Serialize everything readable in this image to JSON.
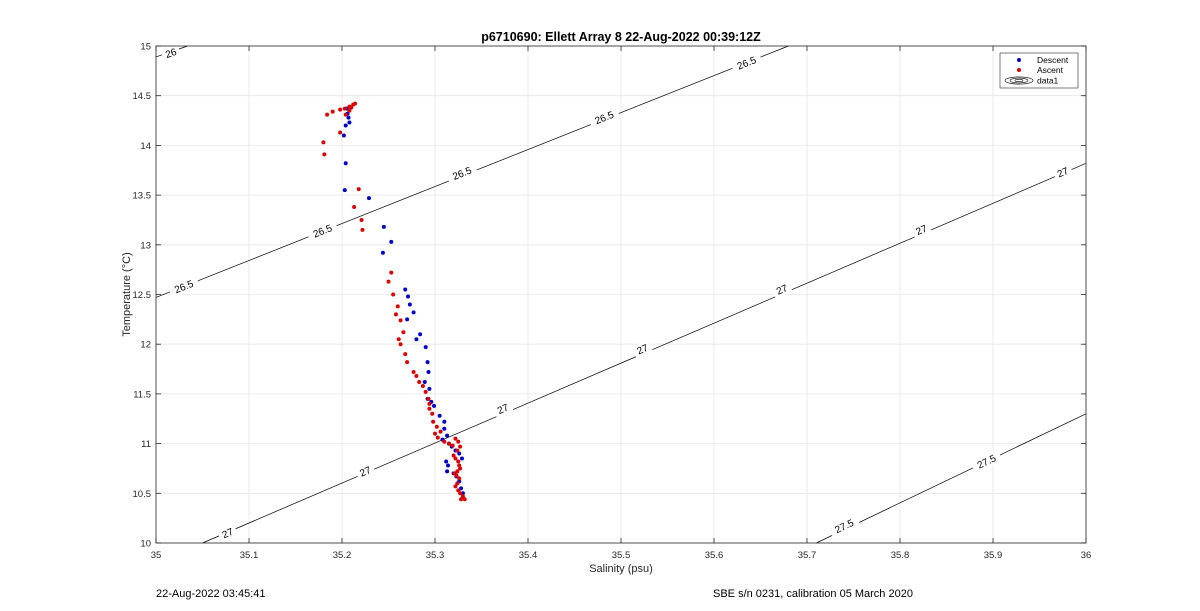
{
  "chart_data": {
    "type": "scatter",
    "title": "p6710690: Ellett Array 8 22-Aug-2022 00:39:12Z",
    "xlabel": "Salinity (psu)",
    "ylabel": "Temperature (°C)",
    "xlim": [
      35,
      36
    ],
    "ylim": [
      10,
      15
    ],
    "x_ticks": [
      "35",
      "35.1",
      "35.2",
      "35.3",
      "35.4",
      "35.5",
      "35.6",
      "35.7",
      "35.8",
      "35.9",
      "36"
    ],
    "y_ticks": [
      "10",
      "10.5",
      "11",
      "11.5",
      "12",
      "12.5",
      "13",
      "13.5",
      "14",
      "14.5",
      "15"
    ],
    "grid": true,
    "legend": {
      "placement": "top-right",
      "entries": [
        "Descent",
        "Ascent",
        "data1"
      ]
    },
    "colors": {
      "descent": "#0000cc",
      "ascent": "#dd0000",
      "contour": "#000000"
    },
    "series": [
      {
        "name": "Descent",
        "x": [
          35.205,
          35.206,
          35.207,
          35.208,
          35.204,
          35.202,
          35.204,
          35.203,
          35.229,
          35.245,
          35.253,
          35.244,
          35.268,
          35.271,
          35.273,
          35.277,
          35.27,
          35.284,
          35.28,
          35.29,
          35.292,
          35.293,
          35.289,
          35.294,
          35.296,
          35.292,
          35.299,
          35.305,
          35.31,
          35.31,
          35.313,
          35.308,
          35.315,
          35.318,
          35.322,
          35.326,
          35.329,
          35.312,
          35.314,
          35.313,
          35.32,
          35.323,
          35.326,
          35.328,
          35.33
        ],
        "y": [
          14.37,
          14.32,
          14.28,
          14.23,
          14.2,
          14.1,
          13.82,
          13.55,
          13.47,
          13.18,
          13.03,
          12.92,
          12.55,
          12.48,
          12.4,
          12.32,
          12.25,
          12.1,
          12.05,
          11.97,
          11.82,
          11.72,
          11.62,
          11.55,
          11.42,
          11.45,
          11.38,
          11.28,
          11.22,
          11.15,
          11.08,
          11.04,
          11.0,
          10.97,
          10.93,
          10.9,
          10.85,
          10.82,
          10.78,
          10.72,
          10.7,
          10.67,
          10.62,
          10.55,
          10.5
        ]
      },
      {
        "name": "Ascent",
        "x": [
          35.214,
          35.212,
          35.208,
          35.203,
          35.198,
          35.19,
          35.184,
          35.18,
          35.181,
          35.198,
          35.204,
          35.208,
          35.21,
          35.221,
          35.213,
          35.218,
          35.222,
          35.253,
          35.25,
          35.255,
          35.26,
          35.258,
          35.263,
          35.266,
          35.261,
          35.263,
          35.268,
          35.27,
          35.277,
          35.28,
          35.283,
          35.287,
          35.29,
          35.293,
          35.294,
          35.297,
          35.294,
          35.298,
          35.302,
          35.306,
          35.3,
          35.303,
          35.31,
          35.315,
          35.319,
          35.322,
          35.325,
          35.327,
          35.324,
          35.32,
          35.322,
          35.325,
          35.326,
          35.327,
          35.324,
          35.321,
          35.323,
          35.326,
          35.324,
          35.322,
          35.325,
          35.327,
          35.33,
          35.328,
          35.332
        ],
        "y": [
          14.42,
          14.41,
          14.39,
          14.37,
          14.36,
          14.34,
          14.31,
          14.03,
          13.91,
          14.13,
          14.31,
          14.35,
          14.38,
          13.25,
          13.38,
          13.56,
          13.15,
          12.72,
          12.63,
          12.5,
          12.38,
          12.3,
          12.24,
          12.12,
          12.05,
          12.0,
          11.9,
          11.82,
          11.72,
          11.68,
          11.62,
          11.58,
          11.52,
          11.45,
          11.4,
          11.3,
          11.35,
          11.22,
          11.17,
          11.12,
          11.1,
          11.06,
          11.02,
          11.0,
          10.98,
          11.05,
          11.02,
          10.97,
          10.93,
          10.88,
          10.85,
          10.82,
          10.78,
          10.75,
          10.72,
          10.7,
          10.68,
          10.65,
          10.6,
          10.57,
          10.53,
          10.5,
          10.47,
          10.44,
          10.44
        ]
      }
    ],
    "contours": [
      {
        "line": [
          [
            35.0,
            14.89
          ],
          [
            35.034,
            15.0
          ]
        ],
        "labels": [
          {
            "text": "26",
            "x": 35.016,
            "y": 14.93
          }
        ]
      },
      {
        "line": [
          [
            35.0,
            12.47
          ],
          [
            35.68,
            15.0
          ]
        ],
        "labels": [
          {
            "text": "26.5",
            "x": 35.03,
            "y": 12.58
          },
          {
            "text": "26.5",
            "x": 35.179,
            "y": 13.14
          },
          {
            "text": "26.5",
            "x": 35.329,
            "y": 13.72
          },
          {
            "text": "26.5",
            "x": 35.482,
            "y": 14.28
          },
          {
            "text": "26.5",
            "x": 35.635,
            "y": 14.83
          }
        ]
      },
      {
        "line": [
          [
            35.05,
            10.0
          ],
          [
            36.0,
            13.82
          ]
        ],
        "labels": [
          {
            "text": "27",
            "x": 35.077,
            "y": 10.1
          },
          {
            "text": "27",
            "x": 35.225,
            "y": 10.72
          },
          {
            "text": "27",
            "x": 35.373,
            "y": 11.35
          },
          {
            "text": "27",
            "x": 35.523,
            "y": 11.95
          },
          {
            "text": "27",
            "x": 35.673,
            "y": 12.55
          },
          {
            "text": "27",
            "x": 35.823,
            "y": 13.15
          },
          {
            "text": "27",
            "x": 35.975,
            "y": 13.73
          }
        ]
      },
      {
        "line": [
          [
            35.71,
            10.0
          ],
          [
            36.0,
            11.3
          ]
        ],
        "labels": [
          {
            "text": "27.5",
            "x": 35.74,
            "y": 10.17
          },
          {
            "text": "27.5",
            "x": 35.893,
            "y": 10.82
          }
        ]
      }
    ]
  },
  "footer": {
    "timestamp": "22-Aug-2022 03:45:41",
    "calibration": "SBE s/n 0231, calibration 05 March 2020"
  }
}
